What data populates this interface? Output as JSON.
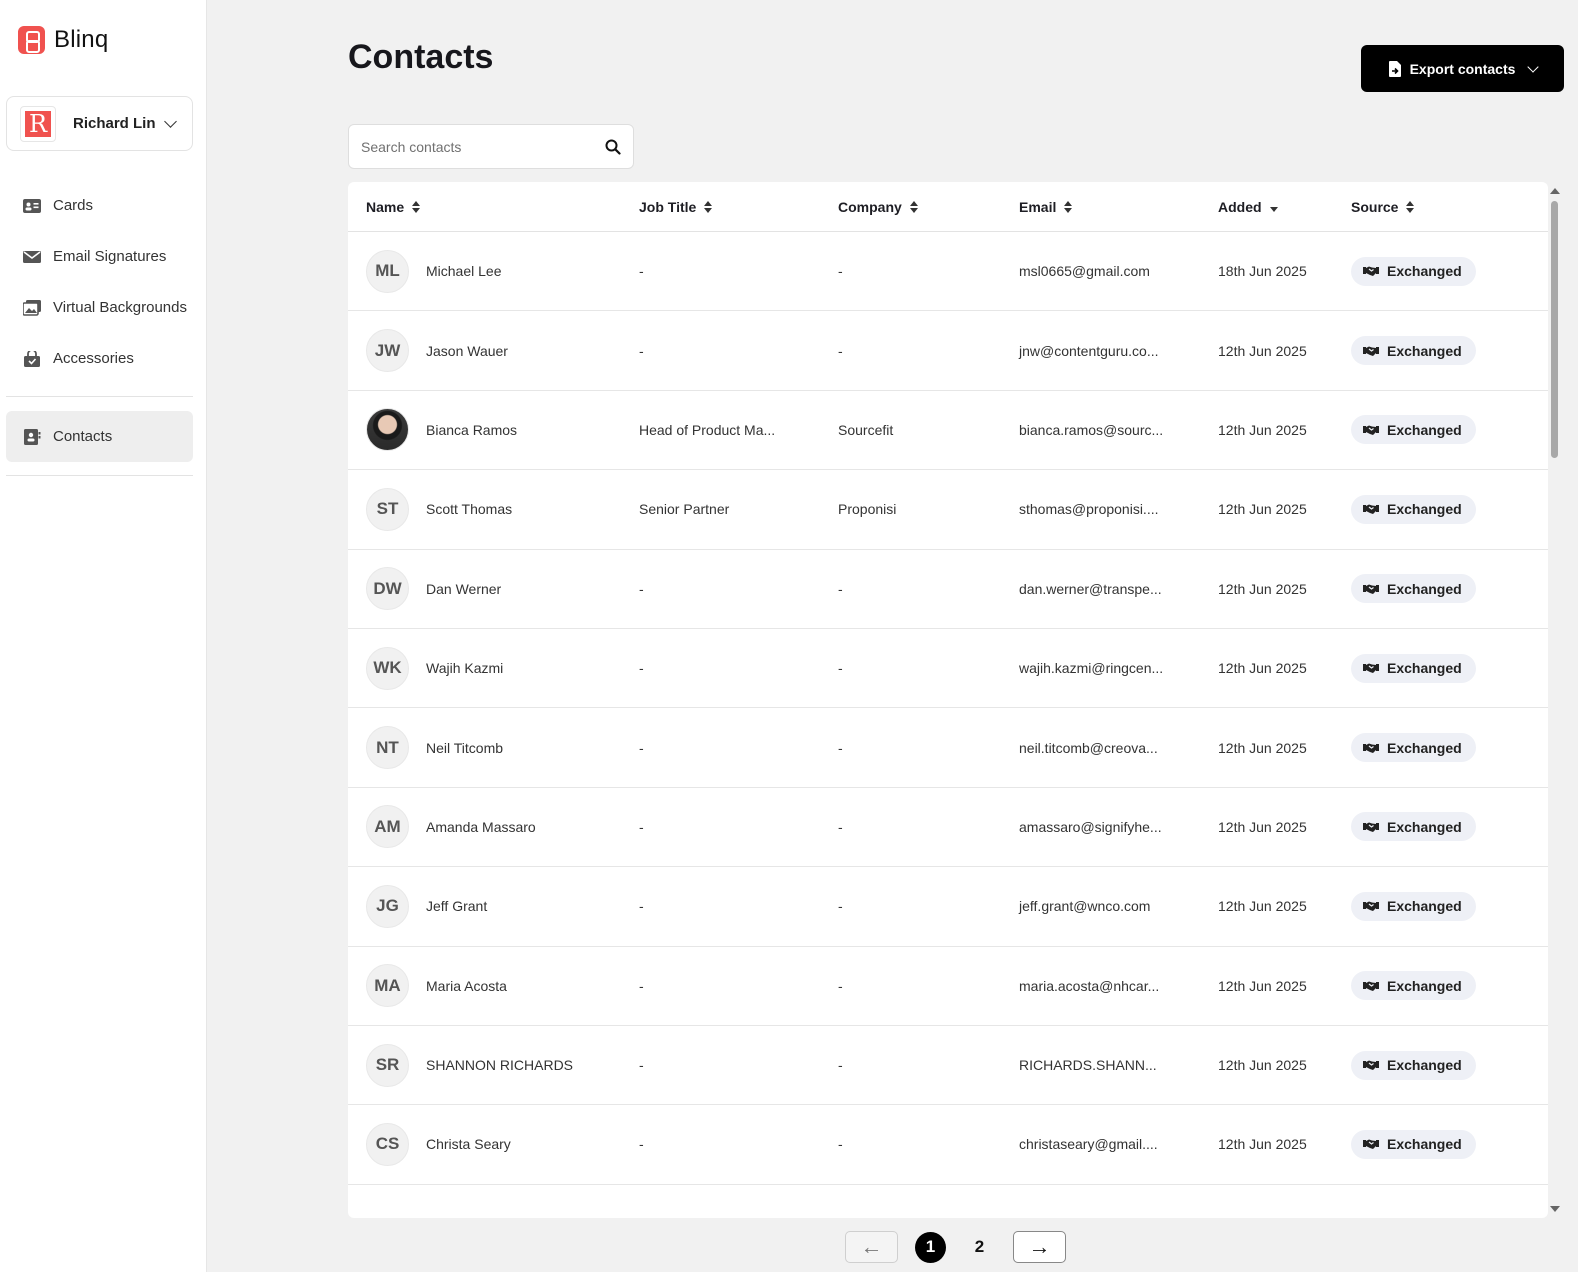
{
  "brand": {
    "name": "Blinq",
    "color": "#f0524f"
  },
  "user": {
    "name": "Richard Lin",
    "initial": "R"
  },
  "nav": {
    "items": [
      {
        "label": "Cards",
        "icon": "id-card-icon"
      },
      {
        "label": "Email Signatures",
        "icon": "envelope-icon"
      },
      {
        "label": "Virtual Backgrounds",
        "icon": "images-icon"
      },
      {
        "label": "Accessories",
        "icon": "shopping-bag-icon"
      }
    ],
    "contacts_label": "Contacts"
  },
  "header": {
    "title": "Contacts",
    "export_label": "Export contacts"
  },
  "search": {
    "placeholder": "Search contacts"
  },
  "table": {
    "columns": [
      "Name",
      "Job Title",
      "Company",
      "Email",
      "Added",
      "Source"
    ],
    "rows": [
      {
        "initials": "ML",
        "name": "Michael Lee",
        "job": "-",
        "company": "-",
        "email": "msl0665@gmail.com",
        "added": "18th Jun 2025",
        "source": "Exchanged"
      },
      {
        "initials": "JW",
        "name": "Jason Wauer",
        "job": "-",
        "company": "-",
        "email": "jnw@contentguru.co...",
        "added": "12th Jun 2025",
        "source": "Exchanged"
      },
      {
        "initials": "",
        "name": "Bianca Ramos",
        "job": "Head of Product Ma...",
        "company": "Sourcefit",
        "email": "bianca.ramos@sourc...",
        "added": "12th Jun 2025",
        "source": "Exchanged"
      },
      {
        "initials": "ST",
        "name": "Scott Thomas",
        "job": "Senior Partner",
        "company": "Proponisi",
        "email": "sthomas@proponisi....",
        "added": "12th Jun 2025",
        "source": "Exchanged"
      },
      {
        "initials": "DW",
        "name": "Dan Werner",
        "job": "-",
        "company": "-",
        "email": "dan.werner@transpe...",
        "added": "12th Jun 2025",
        "source": "Exchanged"
      },
      {
        "initials": "WK",
        "name": "Wajih Kazmi",
        "job": "-",
        "company": "-",
        "email": "wajih.kazmi@ringcen...",
        "added": "12th Jun 2025",
        "source": "Exchanged"
      },
      {
        "initials": "NT",
        "name": "Neil Titcomb",
        "job": "-",
        "company": "-",
        "email": "neil.titcomb@creova...",
        "added": "12th Jun 2025",
        "source": "Exchanged"
      },
      {
        "initials": "AM",
        "name": "Amanda Massaro",
        "job": "-",
        "company": "-",
        "email": "amassaro@signifyhe...",
        "added": "12th Jun 2025",
        "source": "Exchanged"
      },
      {
        "initials": "JG",
        "name": "Jeff Grant",
        "job": "-",
        "company": "-",
        "email": "jeff.grant@wnco.com",
        "added": "12th Jun 2025",
        "source": "Exchanged"
      },
      {
        "initials": "MA",
        "name": "Maria Acosta",
        "job": "-",
        "company": "-",
        "email": "maria.acosta@nhcar...",
        "added": "12th Jun 2025",
        "source": "Exchanged"
      },
      {
        "initials": "SR",
        "name": "SHANNON RICHARDS",
        "job": "-",
        "company": "-",
        "email": "RICHARDS.SHANN...",
        "added": "12th Jun 2025",
        "source": "Exchanged"
      },
      {
        "initials": "CS",
        "name": "Christa Seary",
        "job": "-",
        "company": "-",
        "email": "christaseary@gmail....",
        "added": "12th Jun 2025",
        "source": "Exchanged"
      }
    ]
  },
  "pagination": {
    "current": "1",
    "next_page": "2",
    "prev_arrow": "←",
    "next_arrow": "→"
  }
}
